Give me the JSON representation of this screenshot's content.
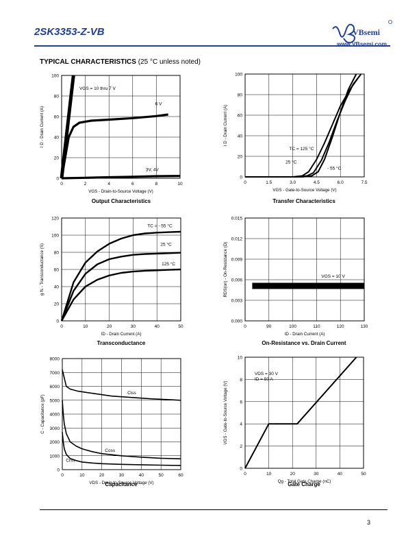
{
  "header": {
    "part_number": "2SK3353-Z-VB",
    "brand": "VBsemi",
    "website": "www.VBsemi.com",
    "logo_mark": "VB"
  },
  "section": {
    "title_bold": "TYPICAL CHARACTERISTICS",
    "title_note": "(25 °C unless noted)"
  },
  "page_number": "3",
  "chart_data": [
    {
      "id": "output",
      "type": "line",
      "caption": "Output Characteristics",
      "xlabel": "VGS - Drain-to-Source Voltage (V)",
      "ylabel": "I D - Drain Current (A)",
      "xlim": [
        0,
        10
      ],
      "ylim": [
        0,
        100
      ],
      "xticks": [
        "0",
        "2",
        "4",
        "6",
        "8",
        "10"
      ],
      "yticks": [
        "0",
        "20",
        "40",
        "60",
        "80",
        "100"
      ],
      "grid": true,
      "annotations": [
        "VGS = 10 thru 7 V",
        "6 V",
        "3V, 4V"
      ],
      "series": [
        {
          "name": "VGS = 10 thru 7 V",
          "x": [
            0,
            0.4,
            0.8,
            1.0
          ],
          "y": [
            0,
            40,
            80,
            100
          ]
        },
        {
          "name": "6 V",
          "x": [
            0,
            0.3,
            0.6,
            1.0,
            1.5,
            2.5,
            4,
            6,
            8,
            9
          ],
          "y": [
            0,
            20,
            40,
            50,
            54,
            56,
            57,
            58.5,
            60.5,
            62
          ]
        },
        {
          "name": "3V, 4V",
          "x": [
            0,
            2,
            4,
            6,
            8,
            10
          ],
          "y": [
            0,
            0.5,
            1,
            1.5,
            2,
            2.2
          ]
        }
      ]
    },
    {
      "id": "transfer",
      "type": "line",
      "caption": "Transfer Characteristics",
      "xlabel": "VGS - Gate-to-Source Voltage (V)",
      "ylabel": "I D - Drain Current (A)",
      "xlim": [
        0,
        7.5
      ],
      "ylim": [
        0,
        100
      ],
      "xticks": [
        "0",
        "1.5",
        "3.0",
        "4.5",
        "6.0",
        "7.5"
      ],
      "yticks": [
        "0",
        "20",
        "40",
        "60",
        "80",
        "100"
      ],
      "grid": true,
      "annotations": [
        "TC = 125 °C",
        "25 °C",
        "- 55 °C"
      ],
      "series": [
        {
          "name": "TC = 125 °C",
          "x": [
            0,
            3.0,
            3.6,
            4.0,
            4.5,
            5.0,
            5.5,
            6.0,
            6.6,
            7.2
          ],
          "y": [
            0,
            0,
            1,
            5,
            17,
            33,
            51,
            69,
            85,
            98
          ]
        },
        {
          "name": "25 °C",
          "x": [
            0,
            3.3,
            3.9,
            4.3,
            4.8,
            5.3,
            5.8,
            6.3,
            6.8,
            7.3
          ],
          "y": [
            0,
            0,
            1,
            4,
            16,
            34,
            55,
            74,
            90,
            100
          ]
        },
        {
          "name": "- 55 °C",
          "x": [
            0,
            3.6,
            4.2,
            4.6,
            5.0,
            5.5,
            6.0,
            6.5,
            7.0
          ],
          "y": [
            0,
            0,
            1,
            5,
            17,
            39,
            63,
            85,
            100
          ]
        }
      ]
    },
    {
      "id": "transconductance",
      "type": "line",
      "caption": "Transconductance",
      "xlabel": "ID - Drain Current (A)",
      "ylabel": "g fs - Transconductance (S)",
      "xlim": [
        0,
        50
      ],
      "ylim": [
        0,
        120
      ],
      "xticks": [
        "0",
        "10",
        "20",
        "30",
        "40",
        "50"
      ],
      "yticks": [
        "0",
        "20",
        "40",
        "60",
        "80",
        "100",
        "120"
      ],
      "grid": true,
      "annotations": [
        "TC = - 55 °C",
        "25 °C",
        "125 °C"
      ],
      "series": [
        {
          "name": "TC = - 55 °C",
          "x": [
            0,
            5,
            10,
            15,
            20,
            25,
            30,
            35,
            40,
            45,
            50
          ],
          "y": [
            0,
            45,
            68,
            81,
            90,
            96,
            100,
            102,
            103,
            103.5,
            104
          ]
        },
        {
          "name": "25 °C",
          "x": [
            0,
            5,
            10,
            15,
            20,
            25,
            30,
            35,
            40,
            45,
            50
          ],
          "y": [
            0,
            35,
            55,
            66,
            72,
            75,
            77,
            78,
            78.5,
            79,
            79.5
          ]
        },
        {
          "name": "125 °C",
          "x": [
            0,
            5,
            10,
            15,
            20,
            25,
            30,
            35,
            40,
            45,
            50
          ],
          "y": [
            0,
            25,
            40,
            48,
            53,
            56,
            57.5,
            58.5,
            59,
            59.5,
            60
          ]
        }
      ]
    },
    {
      "id": "onresistance",
      "type": "line",
      "caption": "On-Resistance vs. Drain Current",
      "xlabel": "ID - Drain Current (A)",
      "ylabel": "RDS(on) - On-Resistance (Ω)",
      "xlim": [
        80,
        130
      ],
      "ylim": [
        0,
        0.015
      ],
      "xticks": [
        "0",
        "90",
        "100",
        "110",
        "120",
        "130"
      ],
      "yticks": [
        "0.000",
        "0.003",
        "0.006",
        "0.009",
        "0.012",
        "0.015"
      ],
      "grid": true,
      "annotations": [
        "VGS = 10 V"
      ],
      "series": [
        {
          "name": "VGS = 10 V",
          "x": [
            83,
            130
          ],
          "y": [
            0.0051,
            0.0051
          ]
        }
      ]
    },
    {
      "id": "capacitance",
      "type": "line",
      "caption": "Capacitance",
      "xlabel": "VDS - Drain-to-Source Voltage (V)",
      "ylabel": "C - Capacitance (pF)",
      "xlim": [
        0,
        60
      ],
      "ylim": [
        0,
        8000
      ],
      "xticks": [
        "0",
        "10",
        "20",
        "30",
        "40",
        "50",
        "60"
      ],
      "yticks": [
        "0",
        "1000",
        "2000",
        "3000",
        "4000",
        "5000",
        "6000",
        "7000",
        "8000"
      ],
      "grid": true,
      "annotations": [
        "Ciss",
        "Coss",
        "Crss"
      ],
      "series": [
        {
          "name": "Ciss",
          "x": [
            0,
            1,
            2,
            4,
            8,
            15,
            25,
            35,
            45,
            60
          ],
          "y": [
            7200,
            6600,
            6000,
            5800,
            5650,
            5500,
            5300,
            5200,
            5100,
            5000
          ]
        },
        {
          "name": "Coss",
          "x": [
            0,
            0.5,
            1,
            2,
            4,
            7,
            10,
            15,
            20,
            30,
            40,
            50,
            60
          ],
          "y": [
            5000,
            4000,
            3300,
            2600,
            2000,
            1700,
            1500,
            1300,
            1150,
            1000,
            900,
            820,
            780
          ]
        },
        {
          "name": "Crss",
          "x": [
            0,
            0.5,
            1,
            2,
            4,
            7,
            10,
            15,
            20,
            30,
            40,
            50,
            60
          ],
          "y": [
            2700,
            2000,
            1500,
            1100,
            800,
            650,
            550,
            480,
            430,
            380,
            350,
            320,
            300
          ]
        }
      ]
    },
    {
      "id": "gatecharge",
      "type": "line",
      "caption": "Gate Charge",
      "xlabel": "Qg - Total Gate Charge (nC)",
      "ylabel": "VGS - Gate-to-Source Voltage (V)",
      "xlim": [
        0,
        50
      ],
      "ylim": [
        0,
        10
      ],
      "xticks": [
        "0",
        "10",
        "20",
        "30",
        "40",
        "50"
      ],
      "yticks": [
        "0",
        "2",
        "4",
        "6",
        "8",
        "10"
      ],
      "grid": true,
      "annotations": [
        "VDS = 30 V",
        "ID = 50 A"
      ],
      "series": [
        {
          "name": "VDS = 30 V",
          "x": [
            0,
            10,
            22,
            47
          ],
          "y": [
            0,
            4,
            4,
            10
          ]
        }
      ]
    }
  ]
}
